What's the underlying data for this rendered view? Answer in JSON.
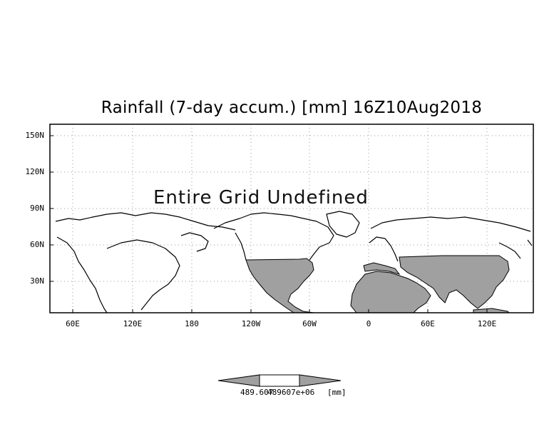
{
  "map": {
    "title": "Rainfall (7-day accum.) [mm] 16Z10Aug2018",
    "undefined_message": "Entire Grid Undefined",
    "lat_labels": [
      "150N",
      "120N",
      "90N",
      "60N",
      "30N"
    ],
    "lon_labels": [
      "60E",
      "120E",
      "180",
      "120W",
      "60W",
      "0",
      "60E",
      "120E"
    ],
    "colors": {
      "land_fill": "#a0a0a0",
      "frame": "#000000",
      "grid": "#9a9a9a"
    }
  },
  "colorbar": {
    "min_label": "489.607",
    "max_label": "489607e+06",
    "unit": "[mm]"
  }
}
